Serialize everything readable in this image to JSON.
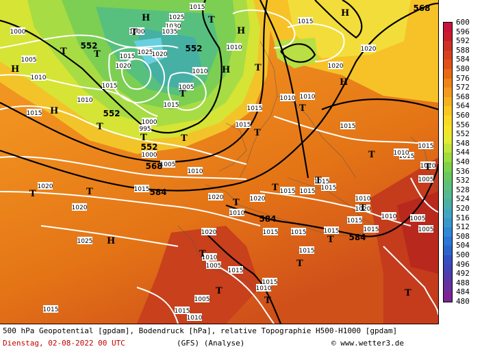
{
  "map": {
    "sea_level_pressure_hpa": [
      "1015",
      "1000",
      "1000",
      "1025",
      "1030",
      "1035",
      "1005",
      "1015",
      "1020",
      "1025",
      "1020",
      "1010",
      "1005",
      "1015",
      "1010",
      "1015",
      "1010",
      "1015",
      "1000",
      "995",
      "1000",
      "1005",
      "1010",
      "1010",
      "1015",
      "1010",
      "1010",
      "1020",
      "1015",
      "1020",
      "1020",
      "1015",
      "1020",
      "1010",
      "1015",
      "1015",
      "1015",
      "1010",
      "1015",
      "1010",
      "1005",
      "1015",
      "1015",
      "1015",
      "1015",
      "1020",
      "1020",
      "1020",
      "1025",
      "1015",
      "1015",
      "1015",
      "1010",
      "1020",
      "1015",
      "1010",
      "1005",
      "1015",
      "1005",
      "1010",
      "1005",
      "1015",
      "1015",
      "1015",
      "1010",
      "1005",
      "1015",
      "1010",
      "1015"
    ],
    "geopotential_labels": [
      "552",
      "552",
      "552",
      "552",
      "568",
      "584",
      "584",
      "584",
      "568"
    ],
    "pressure_centers": [
      "H",
      "H",
      "H",
      "H",
      "H",
      "H",
      "H",
      "H",
      "T",
      "T",
      "T",
      "T",
      "T",
      "T",
      "T",
      "T",
      "T",
      "T",
      "T",
      "T",
      "T",
      "T",
      "T",
      "T",
      "T",
      "T",
      "T",
      "T",
      "T",
      "T",
      "T",
      "T",
      "T"
    ]
  },
  "legend": {
    "unit": "gpdam",
    "levels": [
      600,
      596,
      592,
      588,
      584,
      580,
      576,
      572,
      568,
      564,
      560,
      556,
      552,
      548,
      544,
      540,
      536,
      532,
      528,
      524,
      520,
      516,
      512,
      508,
      504,
      500,
      496,
      492,
      488,
      484,
      480
    ],
    "colors": [
      "#c8143c",
      "#c81e2d",
      "#cc3226",
      "#d8401e",
      "#e05018",
      "#e86a14",
      "#ef8418",
      "#f39a1e",
      "#f6b020",
      "#f9c622",
      "#fbd824",
      "#f6e428",
      "#e4ec30",
      "#c4e43a",
      "#9edc40",
      "#7cd24a",
      "#6ac85e",
      "#5ec07a",
      "#54b890",
      "#4ab0a8",
      "#42a6be",
      "#3a98cc",
      "#3288d4",
      "#2c76d6",
      "#2c64cc",
      "#3450c0",
      "#4442b4",
      "#5638a8",
      "#6a2e9e",
      "#7c2494"
    ]
  },
  "footer": {
    "line1": "500 hPa Geopotential [gpdam], Bodendruck [hPa], relative Topographie H500-H1000 [gpdam]",
    "line2": "Dienstag, 02-08-2022  00 UTC",
    "model": "(GFS)  (Analyse)",
    "credit": "© www.wetter3.de"
  },
  "corner_label": "568"
}
